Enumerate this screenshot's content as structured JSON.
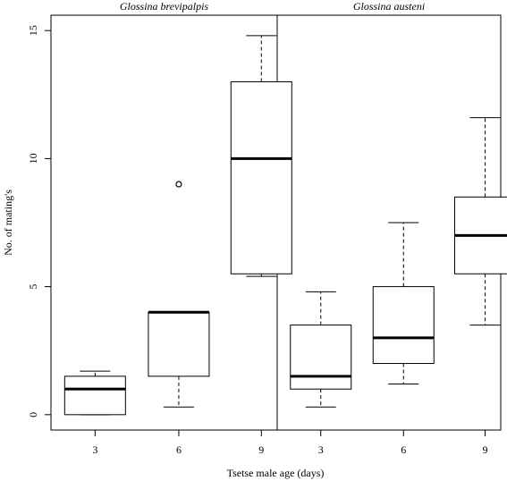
{
  "chart_data": {
    "type": "box",
    "xlabel": "Tsetse male age (days)",
    "ylabel": "No. of mating's",
    "ylim": [
      -0.6,
      15.6
    ],
    "y_ticks": [
      0,
      5,
      10,
      15
    ],
    "grid": false,
    "panels": [
      {
        "title": "Glossina brevipalpis",
        "categories": [
          "3",
          "6",
          "9"
        ],
        "boxes": [
          {
            "category": "3",
            "whisker_low": 0,
            "q1": 0,
            "median": 1,
            "q3": 1.5,
            "whisker_high": 1.7,
            "outliers": []
          },
          {
            "category": "6",
            "whisker_low": 0.3,
            "q1": 1.5,
            "median": 4,
            "q3": 4,
            "whisker_high": 4,
            "outliers": [
              9
            ]
          },
          {
            "category": "9",
            "whisker_low": 5.4,
            "q1": 5.5,
            "median": 10,
            "q3": 13,
            "whisker_high": 14.8,
            "outliers": []
          }
        ]
      },
      {
        "title": "Glossina  austeni",
        "categories": [
          "3",
          "6",
          "9"
        ],
        "boxes": [
          {
            "category": "3",
            "whisker_low": 0.3,
            "q1": 1,
            "median": 1.5,
            "q3": 3.5,
            "whisker_high": 4.8,
            "outliers": []
          },
          {
            "category": "6",
            "whisker_low": 1.2,
            "q1": 2,
            "median": 3,
            "q3": 5,
            "whisker_high": 7.5,
            "outliers": []
          },
          {
            "category": "9",
            "whisker_low": 3.5,
            "q1": 5.5,
            "median": 7,
            "q3": 8.5,
            "whisker_high": 11.6,
            "outliers": []
          }
        ]
      }
    ]
  }
}
